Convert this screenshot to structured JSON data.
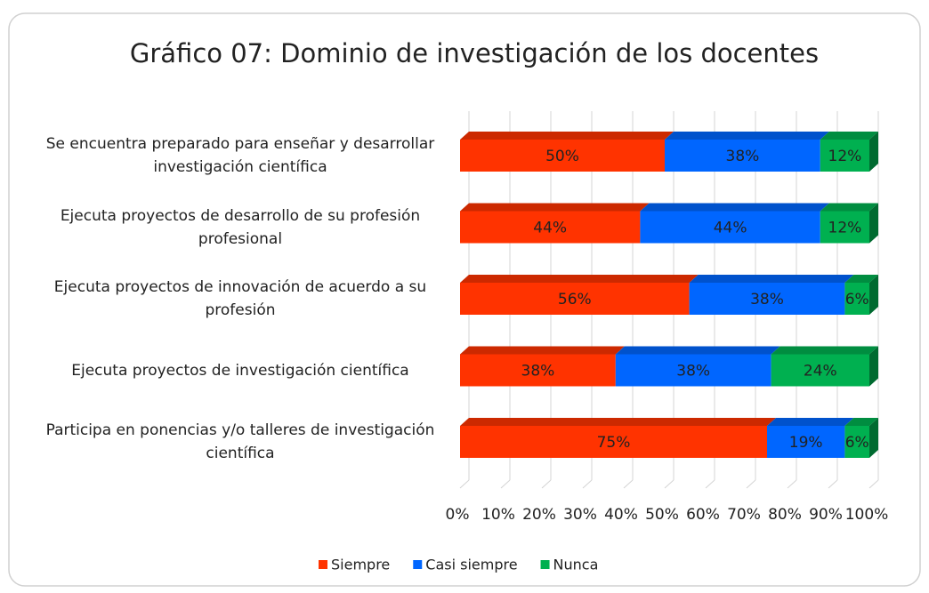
{
  "chart_data": {
    "type": "bar",
    "title": "Gráfico 07: Dominio de investigación de los docentes",
    "orientation": "horizontal",
    "stacked": true,
    "categories": [
      "Se encuentra preparado para enseñar y desarrollar investigación científica",
      "Ejecuta proyectos de desarrollo de su profesión profesional",
      "Ejecuta proyectos de innovación de acuerdo a su profesión",
      "Ejecuta proyectos de investigación científica",
      "Participa en ponencias y/o talleres de investigación científica"
    ],
    "series": [
      {
        "name": "Siempre",
        "color": "#ff3300",
        "values": [
          50,
          44,
          56,
          38,
          75
        ],
        "value_labels": [
          "50%",
          "44%",
          "56%",
          "38%",
          "75%"
        ]
      },
      {
        "name": "Casi siempre",
        "color": "#0066ff",
        "values": [
          38,
          44,
          38,
          38,
          19
        ],
        "value_labels": [
          "38%",
          "44%",
          "38%",
          "38%",
          "19%"
        ]
      },
      {
        "name": "Nunca",
        "color": "#00b050",
        "values": [
          12,
          12,
          6,
          24,
          6
        ],
        "value_labels": [
          "12%",
          "12%",
          "6%",
          "24%",
          "6%"
        ]
      }
    ],
    "xlim": [
      0,
      100
    ],
    "xticks": [
      {
        "value": 0,
        "label": "0%"
      },
      {
        "value": 10,
        "label": "10%"
      },
      {
        "value": 20,
        "label": "20%"
      },
      {
        "value": 30,
        "label": "30%"
      },
      {
        "value": 40,
        "label": "40%"
      },
      {
        "value": 50,
        "label": "50%"
      },
      {
        "value": 60,
        "label": "60%"
      },
      {
        "value": 70,
        "label": "70%"
      },
      {
        "value": 80,
        "label": "80%"
      },
      {
        "value": 90,
        "label": "90%"
      },
      {
        "value": 100,
        "label": "100%"
      }
    ],
    "grid": true,
    "legend": "bottom"
  }
}
